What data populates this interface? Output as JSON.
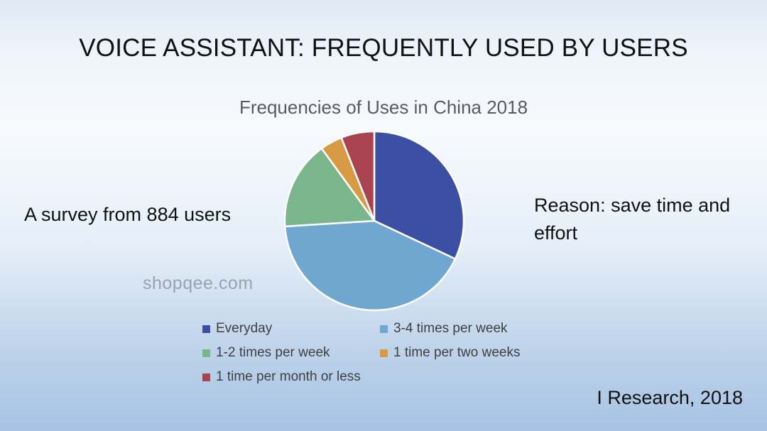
{
  "slide": {
    "title": "VOICE ASSISTANT: FREQUENTLY USED BY USERS",
    "survey_note": "A survey from 884 users",
    "reason_note": "Reason: save time and effort",
    "source_note": "I Research, 2018",
    "watermark": "shopqee.com"
  },
  "chart_data": {
    "type": "pie",
    "title": "Frequencies of Uses in China 2018",
    "categories": [
      "Everyday",
      "3-4 times per week",
      "1-2 times per week",
      "1 time per two weeks",
      "1 time per month or less"
    ],
    "values": [
      32,
      42,
      16,
      4,
      6
    ],
    "colors": [
      "#3b4fa3",
      "#6fa7d1",
      "#7ab58c",
      "#d99a46",
      "#a8434f"
    ],
    "legend_position": "bottom",
    "start_angle_deg": 0,
    "direction": "clockwise"
  }
}
